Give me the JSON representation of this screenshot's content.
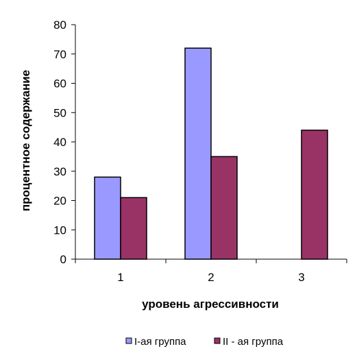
{
  "chart_data": {
    "type": "bar",
    "categories": [
      "1",
      "2",
      "3"
    ],
    "series": [
      {
        "name": "I-ая группа",
        "values": [
          28,
          72,
          null
        ],
        "color": "#9999FF"
      },
      {
        "name": "II - ая группа",
        "values": [
          21,
          35,
          44
        ],
        "color": "#993366"
      }
    ],
    "xlabel": "уровень агрессивности",
    "ylabel": "процентное содержание",
    "ylim": [
      0,
      80
    ],
    "yticks": [
      0,
      10,
      20,
      30,
      40,
      50,
      60,
      70,
      80
    ],
    "grid": false,
    "legend": "bottom"
  }
}
